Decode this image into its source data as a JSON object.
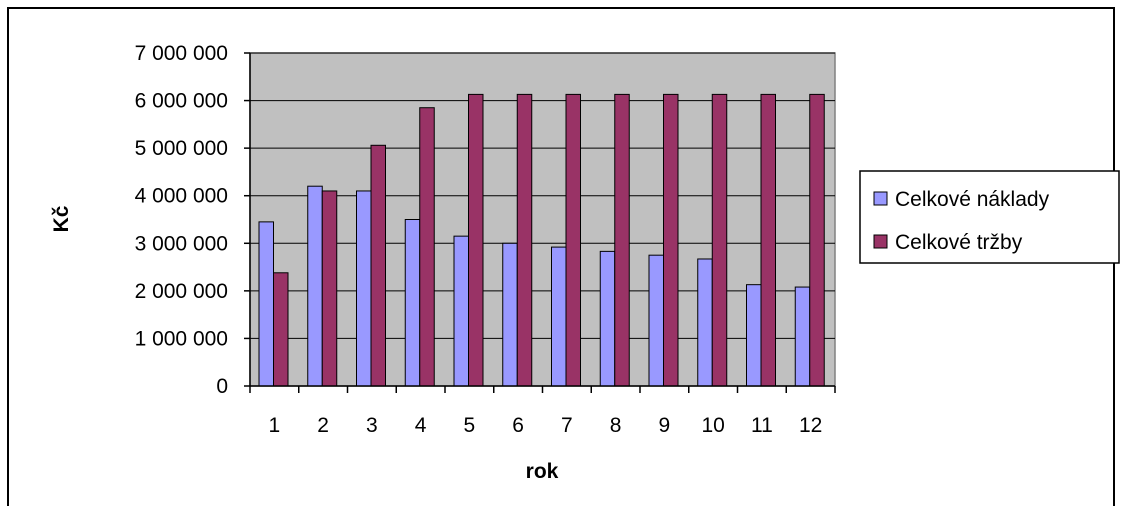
{
  "chart_data": {
    "type": "bar",
    "title": "",
    "xlabel": "rok",
    "ylabel": "Kč",
    "categories": [
      "1",
      "2",
      "3",
      "4",
      "5",
      "6",
      "7",
      "8",
      "9",
      "10",
      "11",
      "12"
    ],
    "ylim": [
      0,
      7000000
    ],
    "yticks": [
      0,
      1000000,
      2000000,
      3000000,
      4000000,
      5000000,
      6000000,
      7000000
    ],
    "ytick_labels": [
      "0",
      "1 000 000",
      "2 000 000",
      "3 000 000",
      "4 000 000",
      "5 000 000",
      "6 000 000",
      "7 000 000"
    ],
    "grid": true,
    "legend_position": "right",
    "plot_background": "#c0c0c0",
    "series": [
      {
        "name": "Celkové náklady",
        "color": "#9999ff",
        "values": [
          3450000,
          4200000,
          4100000,
          3500000,
          3150000,
          3000000,
          2920000,
          2830000,
          2750000,
          2670000,
          2130000,
          2080000
        ]
      },
      {
        "name": "Celkové tržby",
        "color": "#993366",
        "values": [
          2380000,
          4100000,
          5060000,
          5850000,
          6130000,
          6130000,
          6130000,
          6130000,
          6130000,
          6130000,
          6130000,
          6130000
        ]
      }
    ]
  }
}
